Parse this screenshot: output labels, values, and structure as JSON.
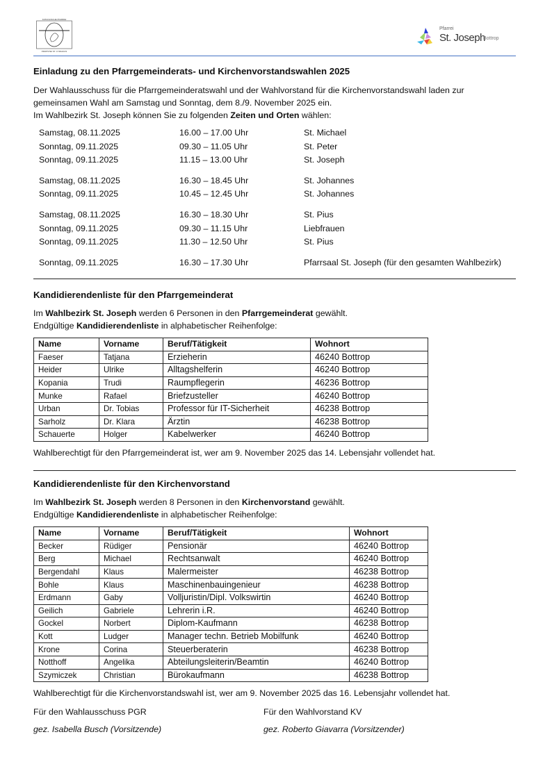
{
  "header": {
    "left_logo": {
      "top_text": "KATHOLISCHE PFARREI",
      "bottom_text": "PROPSTEI ST. CYRIAKUS"
    },
    "right_logo": {
      "small": "Pfarrei",
      "name": "St. Joseph",
      "city": "Bottrop"
    },
    "accent": "#4472c4"
  },
  "invitation": {
    "title": "Einladung zu den Pfarrgemeinderats- und Kirchenvorstandswahlen 2025",
    "line1": "Der Wahlausschuss für die Pfarrgemeinderatswahl und der Wahlvorstand für die Kirchenvorstandswahl laden zur",
    "line2": "gemeinsamen Wahl am Samstag und Sonntag, dem 8./9. November 2025 ein.",
    "line3_pre": "Im Wahlbezirk St. Joseph können Sie zu folgenden ",
    "line3_bold": "Zeiten und Orten",
    "line3_post": " wählen:",
    "schedule": [
      {
        "date": "Samstag, 08.11.2025",
        "time": "16.00 – 17.00 Uhr",
        "place": "St. Michael"
      },
      {
        "date": "Sonntag, 09.11.2025",
        "time": "09.30 – 11.05 Uhr",
        "place": "St. Peter"
      },
      {
        "date": "Sonntag, 09.11.2025",
        "time": "11.15 – 13.00 Uhr",
        "place": "St. Joseph"
      },
      {
        "date": "Samstag, 08.11.2025",
        "time": "16.30 – 18.45 Uhr",
        "place": "St. Johannes"
      },
      {
        "date": "Sonntag, 09.11.2025",
        "time": "10.45 – 12.45 Uhr",
        "place": "St. Johannes"
      },
      {
        "date": "Samstag, 08.11.2025",
        "time": "16.30 – 18.30 Uhr",
        "place": "St. Pius"
      },
      {
        "date": "Sonntag, 09.11.2025",
        "time": "09.30 – 11.15 Uhr",
        "place": "Liebfrauen"
      },
      {
        "date": "Sonntag, 09.11.2025",
        "time": "11.30 – 12.50 Uhr",
        "place": "St. Pius"
      },
      {
        "date": "Sonntag, 09.11.2025",
        "time": "16.30 – 17.30 Uhr",
        "place": "Pfarrsaal St. Joseph (für den gesamten Wahlbezirk)"
      }
    ]
  },
  "pgr": {
    "title": "Kandidierendenliste für den Pfarrgemeinderat",
    "l1_a": "Im ",
    "l1_b": "Wahlbezirk St. Joseph",
    "l1_c": " werden 6 Personen in den ",
    "l1_d": "Pfarrgemeinderat",
    "l1_e": " gewählt.",
    "l2_a": "Endgültige ",
    "l2_b": "Kandidierendenliste",
    "l2_c": " in alphabetischer Reihenfolge:",
    "columns": [
      "Name",
      "Vorname",
      "Beruf/Tätigkeit",
      "Wohnort"
    ],
    "rows": [
      [
        "Faeser",
        "Tatjana",
        "Erzieherin",
        "46240 Bottrop"
      ],
      [
        "Heider",
        "Ulrike",
        "Alltagshelferin",
        "46240 Bottrop"
      ],
      [
        "Kopania",
        "Trudi",
        "Raumpflegerin",
        "46236 Bottrop"
      ],
      [
        "Munke",
        "Rafael",
        "Briefzusteller",
        "46240 Bottrop"
      ],
      [
        "Urban",
        "Dr. Tobias",
        "Professor für IT-Sicherheit",
        "46238 Bottrop"
      ],
      [
        "Sarholz",
        "Dr. Klara",
        "Ärztin",
        "46238 Bottrop"
      ],
      [
        "Schauerte",
        "Holger",
        "Kabelwerker",
        "46240 Bottrop"
      ]
    ],
    "footer": "Wahlberechtigt für den Pfarrgemeinderat ist, wer am 9. November 2025 das 14. Lebensjahr vollendet hat."
  },
  "kv": {
    "title": "Kandidierendenliste für den Kirchenvorstand",
    "l1_a": "Im ",
    "l1_b": "Wahlbezirk St. Joseph",
    "l1_c": " werden 8 Personen in den ",
    "l1_d": "Kirchenvorstand",
    "l1_e": " gewählt.",
    "l2_a": "Endgültige ",
    "l2_b": "Kandidierendenliste",
    "l2_c": " in alphabetischer Reihenfolge:",
    "columns": [
      "Name",
      "Vorname",
      "Beruf/Tätigkeit",
      "Wohnort"
    ],
    "rows": [
      [
        "Becker",
        "Rüdiger",
        "Pensionär",
        "46240 Bottrop"
      ],
      [
        "Berg",
        "Michael",
        "Rechtsanwalt",
        "46240 Bottrop"
      ],
      [
        "Bergendahl",
        "Klaus",
        "Malermeister",
        "46238 Bottrop"
      ],
      [
        "Bohle",
        "Klaus",
        "Maschinenbauingenieur",
        "46238 Bottrop"
      ],
      [
        "Erdmann",
        "Gaby",
        "Volljuristin/Dipl. Volkswirtin",
        "46240 Bottrop"
      ],
      [
        "Geilich",
        "Gabriele",
        "Lehrerin i.R.",
        "46240 Bottrop"
      ],
      [
        "Gockel",
        "Norbert",
        "Diplom-Kaufmann",
        "46238 Bottrop"
      ],
      [
        "Kott",
        "Ludger",
        "Manager techn. Betrieb Mobilfunk",
        "46240 Bottrop"
      ],
      [
        "Krone",
        "Corina",
        "Steuerberaterin",
        "46238 Bottrop"
      ],
      [
        "Notthoff",
        "Angelika",
        "Abteilungsleiterin/Beamtin",
        "46240 Bottrop"
      ],
      [
        "Szymiczek",
        "Christian",
        "Bürokaufmann",
        "46238 Bottrop"
      ]
    ],
    "footer": "Wahlberechtigt für die Kirchenvorstandswahl ist, wer am 9. November 2025 das 16. Lebensjahr vollendet hat."
  },
  "signatures": {
    "left_label": "Für den Wahlausschuss PGR",
    "left_name": "gez. Isabella Busch (Vorsitzende)",
    "right_label": "Für den Wahlvorstand KV",
    "right_name": "gez. Roberto Giavarra (Vorsitzender)"
  }
}
